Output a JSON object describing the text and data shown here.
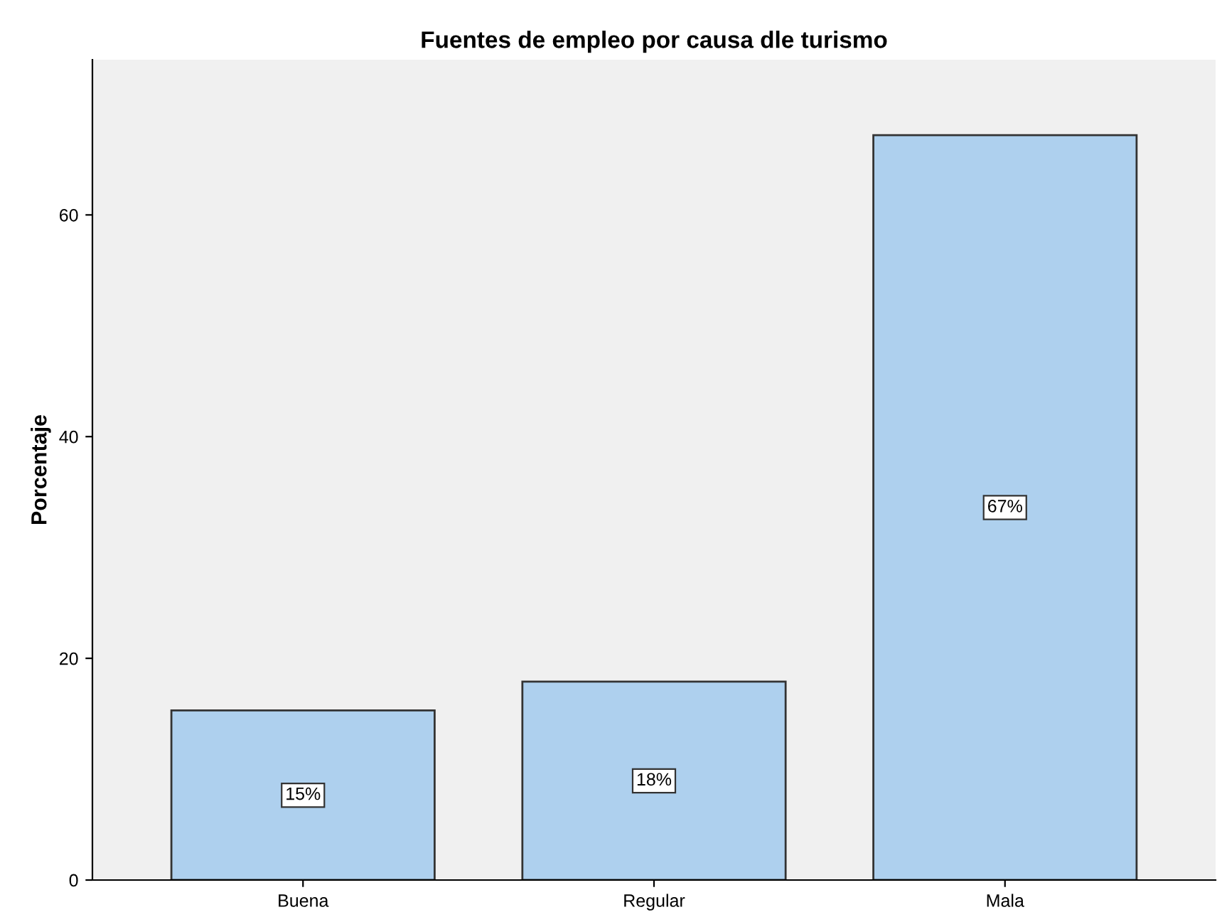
{
  "chart_data": {
    "type": "bar",
    "title": "Fuentes de empleo por causa dle turismo",
    "ylabel": "Porcentaje",
    "categories": [
      "Buena",
      "Regular",
      "Mala"
    ],
    "values": [
      15.3,
      17.9,
      67.2
    ],
    "value_labels": [
      "15%",
      "18%",
      "67%"
    ],
    "color": "#aed0ee",
    "ylim": [
      0,
      74
    ],
    "yticks": [
      0,
      20,
      40,
      60
    ],
    "grid": false,
    "legend": false
  }
}
